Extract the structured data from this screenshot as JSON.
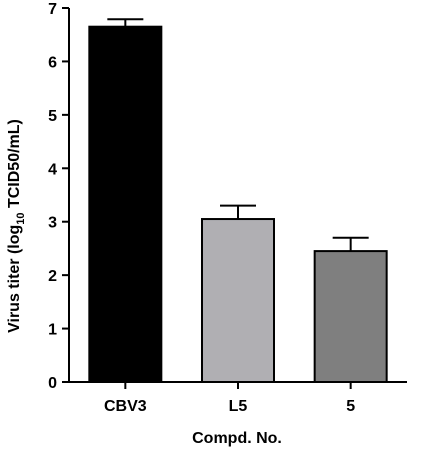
{
  "chart_data": {
    "type": "bar",
    "categories": [
      "CBV3",
      "L5",
      "5"
    ],
    "values": [
      6.65,
      3.05,
      2.45
    ],
    "errors": [
      0.14,
      0.25,
      0.25
    ],
    "bar_colors": [
      "#000000",
      "#b0afb3",
      "#7f7f7f"
    ],
    "xlabel": "Compd. No.",
    "ylabel": {
      "prefix": "Virus titer (log",
      "subscript": "10",
      "suffix": " TCID50/mL)"
    },
    "ylim": [
      0,
      7
    ],
    "yticks": [
      0,
      1,
      2,
      3,
      4,
      5,
      6,
      7
    ],
    "grid": false,
    "legend": "none"
  }
}
